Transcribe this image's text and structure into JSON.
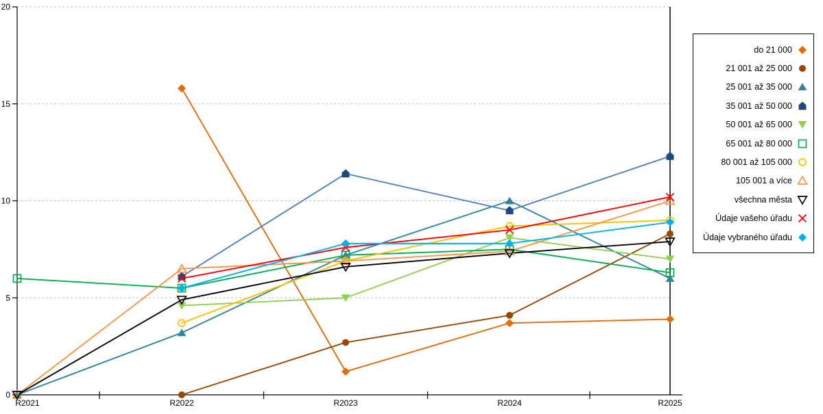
{
  "chart_data": {
    "type": "line",
    "title": "",
    "xlabel": "",
    "ylabel": "",
    "x_categories": [
      "R2021",
      "R2022",
      "R2023",
      "R2024",
      "R2025"
    ],
    "y_ticks": [
      0,
      5,
      10,
      15,
      20
    ],
    "ylim": [
      0,
      20
    ],
    "grid": "horizontal-dashed",
    "grid_color": "#c2c2c2",
    "axis_color": "#000000",
    "legend_position": "right-box",
    "series": [
      {
        "name": "do 21 000",
        "color": "#E36C09",
        "line_color": "#E36C09",
        "marker": "diamond",
        "filled": true,
        "values": [
          null,
          15.8,
          1.2,
          3.7,
          3.9
        ]
      },
      {
        "name": "21 001 až 25 000",
        "color": "#974706",
        "line_color": "#974706",
        "marker": "circle",
        "filled": true,
        "values": [
          null,
          0,
          2.7,
          4.1,
          8.3
        ]
      },
      {
        "name": "25 001 až 35 000",
        "color": "#31859B",
        "line_color": "#31859B",
        "marker": "triangle-up",
        "filled": true,
        "values": [
          0,
          3.2,
          7.2,
          10,
          6
        ]
      },
      {
        "name": "35 001 až 50 000",
        "color": "#1F497D",
        "line_color": "#4F81BD",
        "marker": "pentagon",
        "filled": true,
        "values": [
          null,
          6.1,
          11.4,
          9.5,
          12.3
        ]
      },
      {
        "name": "50 001 až 65 000",
        "color": "#92D050",
        "line_color": "#92D050",
        "marker": "triangle-down",
        "filled": true,
        "values": [
          null,
          4.6,
          5,
          8.1,
          7
        ]
      },
      {
        "name": "65 001 až 80 000",
        "color": "#00B050",
        "line_color": "#00B050",
        "marker": "square",
        "filled": false,
        "values": [
          6,
          5.5,
          7.2,
          7.5,
          6.3
        ]
      },
      {
        "name": "80 001 až 105 000",
        "color": "#FFC000",
        "line_color": "#FFC000",
        "marker": "circle",
        "filled": false,
        "values": [
          null,
          3.7,
          6.9,
          8.7,
          9
        ]
      },
      {
        "name": "105 001 a více",
        "color": "#F79646",
        "line_color": "#F79646",
        "marker": "triangle-up",
        "filled": false,
        "values": [
          0,
          6.5,
          6.9,
          7.4,
          10
        ]
      },
      {
        "name": "všechna města",
        "color": "#000000",
        "line_color": "#000000",
        "marker": "triangle-down",
        "filled": false,
        "values": [
          0,
          4.9,
          6.6,
          7.3,
          7.9
        ]
      },
      {
        "name": "Údaje vašeho úřadu",
        "color": "#FF0000",
        "line_color": "#FF0000",
        "marker": "x",
        "filled": false,
        "values": [
          null,
          6,
          7.6,
          8.5,
          10.2
        ]
      },
      {
        "name": "Údaje vybraného úřadu",
        "color": "#00B0F0",
        "line_color": "#00B0F0",
        "marker": "diamond",
        "filled": true,
        "values": [
          null,
          5.5,
          7.8,
          7.8,
          8.9
        ]
      }
    ]
  }
}
